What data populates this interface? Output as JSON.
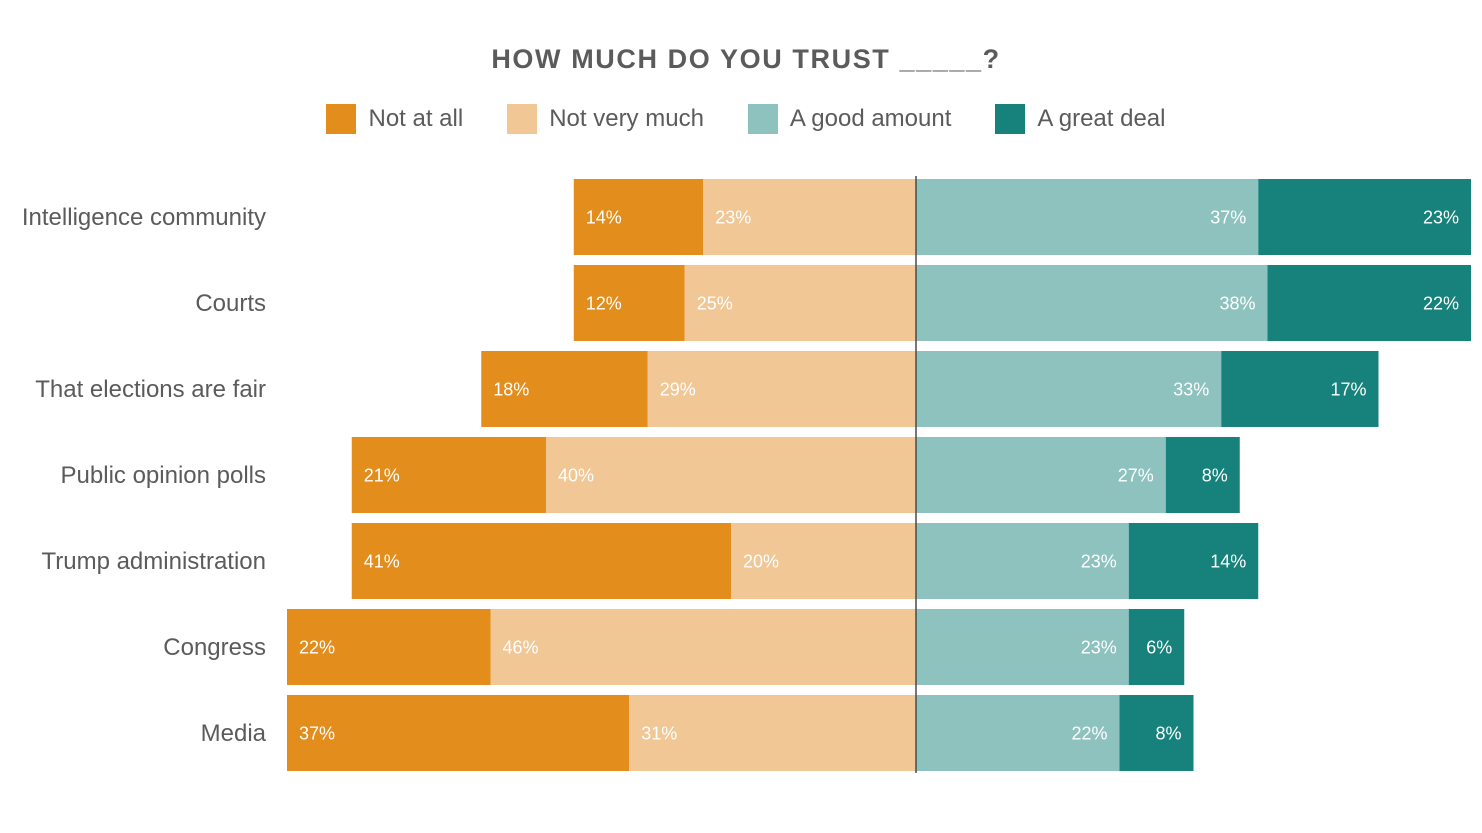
{
  "chart_data": {
    "type": "bar",
    "orientation": "horizontal",
    "stacking": "diverging",
    "title": "HOW MUCH DO YOU TRUST _____?",
    "legend_position": "top",
    "categories": [
      "Intelligence community",
      "Courts",
      "That elections are fair",
      "Public opinion polls",
      "Trump administration",
      "Congress",
      "Media"
    ],
    "series": [
      {
        "name": "Not at all",
        "color": "#e38e1c",
        "side": "negative",
        "values": [
          14,
          12,
          18,
          21,
          41,
          22,
          37
        ],
        "labels": [
          "14%",
          "12%",
          "18%",
          "21%",
          "41%",
          "22%",
          "37%"
        ]
      },
      {
        "name": "Not very much",
        "color": "#f0c795",
        "side": "negative",
        "values": [
          23,
          25,
          29,
          40,
          20,
          46,
          31
        ],
        "labels": [
          "23%",
          "25%",
          "29%",
          "40%",
          "20%",
          "46%",
          "31%"
        ]
      },
      {
        "name": "A good amount",
        "color": "#8dc2bf",
        "side": "positive",
        "values": [
          37,
          38,
          33,
          27,
          23,
          23,
          22
        ],
        "labels": [
          "37%",
          "38%",
          "33%",
          "27%",
          "23%",
          "23%",
          "22%"
        ]
      },
      {
        "name": "A great deal",
        "color": "#16827b",
        "side": "positive",
        "values": [
          23,
          22,
          17,
          8,
          14,
          6,
          8
        ],
        "labels": [
          "23%",
          "22%",
          "17%",
          "8%",
          "14%",
          "6%",
          "8%"
        ]
      }
    ],
    "grid": false
  }
}
